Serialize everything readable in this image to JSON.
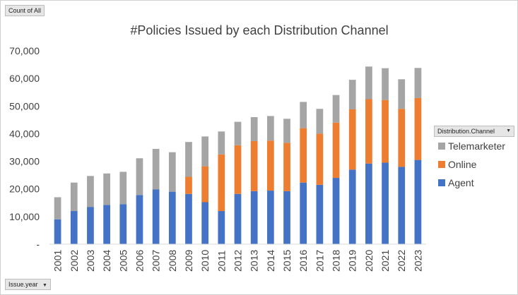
{
  "pivot": {
    "value_field": "Count of All",
    "axis_field": "Issue.year",
    "legend_field": "Distribution.Channel"
  },
  "chart_data": {
    "type": "bar",
    "stacked": true,
    "title": "#Policies Issued by each Distribution Channel",
    "xlabel": "",
    "ylabel": "",
    "ylim": [
      0,
      70000
    ],
    "yticks": [
      0,
      10000,
      20000,
      30000,
      40000,
      50000,
      60000,
      70000
    ],
    "ytick_labels": [
      "-",
      "10,000",
      "20,000",
      "30,000",
      "40,000",
      "50,000",
      "60,000",
      "70,000"
    ],
    "grid": false,
    "legend_position": "right",
    "categories": [
      "2001",
      "2002",
      "2003",
      "2004",
      "2005",
      "2006",
      "2007",
      "2008",
      "2009",
      "2010",
      "2011",
      "2012",
      "2013",
      "2014",
      "2015",
      "2016",
      "2017",
      "2018",
      "2019",
      "2020",
      "2021",
      "2022",
      "2023"
    ],
    "series": [
      {
        "name": "Agent",
        "color": "#4472c4",
        "values": [
          9000,
          12000,
          13500,
          14200,
          14500,
          17800,
          19800,
          19000,
          18200,
          15200,
          12000,
          18200,
          19200,
          19400,
          19200,
          22300,
          21500,
          24000,
          27000,
          29200,
          29500,
          28000,
          30500
        ]
      },
      {
        "name": "Online",
        "color": "#ed7d31",
        "values": [
          0,
          0,
          0,
          0,
          0,
          0,
          0,
          0,
          6200,
          13000,
          20500,
          17600,
          18100,
          18100,
          17500,
          19700,
          18500,
          20000,
          21800,
          23300,
          22700,
          21000,
          22400
        ]
      },
      {
        "name": "Telemarketer",
        "color": "#a5a5a5",
        "values": [
          8000,
          10300,
          11200,
          11400,
          11700,
          13300,
          14700,
          14300,
          12600,
          10800,
          8300,
          8500,
          8700,
          8900,
          8700,
          9500,
          9000,
          10000,
          10700,
          11800,
          11500,
          10700,
          10900
        ]
      }
    ]
  }
}
